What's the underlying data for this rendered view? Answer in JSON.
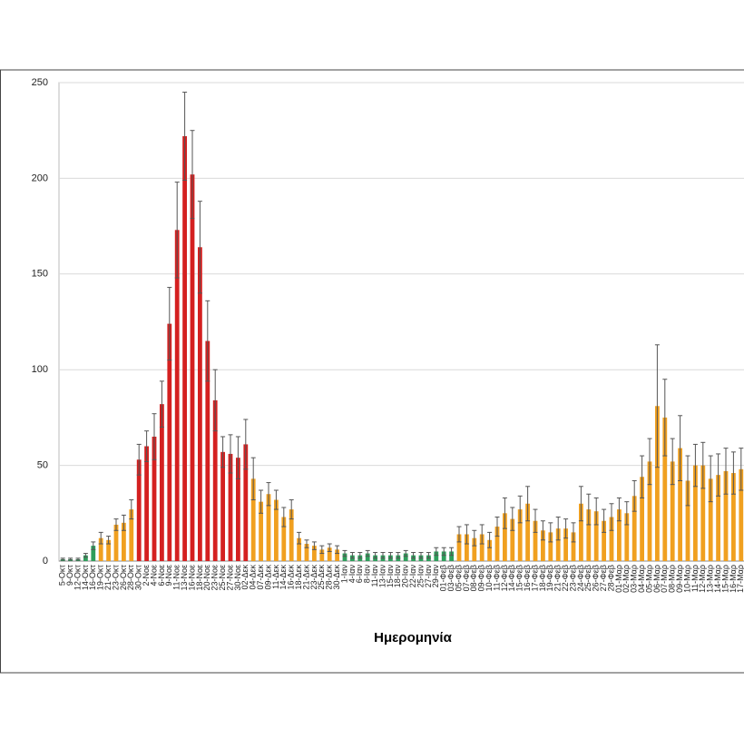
{
  "chart_data": {
    "type": "bar",
    "x_label": "Ημερομηνία",
    "categories": [
      "5-Οκτ",
      "9-Οκτ",
      "12-Οκτ",
      "14-Οκτ",
      "16-Οκτ",
      "19-Οκτ",
      "21-Οκτ",
      "23-Οκτ",
      "26-Οκτ",
      "28-Οκτ",
      "30-Οκτ",
      "2-Νοε",
      "4-Νοε",
      "6-Νοε",
      "9-Νοε",
      "11-Νοε",
      "13-Νοε",
      "16-Νοε",
      "18-Νοε",
      "20-Νοε",
      "23-Νοε",
      "25-Νοε",
      "27-Νοε",
      "30-Νοε",
      "02-Δεκ",
      "04-Δεκ",
      "07-Δεκ",
      "09-Δεκ",
      "11-Δεκ",
      "14-Δεκ",
      "16-Δεκ",
      "18-Δεκ",
      "21-Δεκ",
      "23-Δεκ",
      "25-Δεκ",
      "28-Δεκ",
      "30-Δεκ",
      "1-Ιαν",
      "4-Ιαν",
      "6-Ιαν",
      "8-Ιαν",
      "11-Ιαν",
      "13-Ιαν",
      "15-Ιαν",
      "18-Ιαν",
      "20-Ιαν",
      "22-Ιαν",
      "25-Ιαν",
      "27-Ιαν",
      "29-Ιαν",
      "01-Φεβ",
      "03-Φεβ",
      "05-Φεβ",
      "07-Φεβ",
      "08-Φεβ",
      "09-Φεβ",
      "10-Φεβ",
      "11-Φεβ",
      "12-Φεβ",
      "14-Φεβ",
      "15-Φεβ",
      "16-Φεβ",
      "17-Φεβ",
      "18-Φεβ",
      "19-Φεβ",
      "21-Φεβ",
      "22-Φεβ",
      "23-Φεβ",
      "24-Φεβ",
      "25-Φεβ",
      "26-Φεβ",
      "27-Φεβ",
      "28-Φεβ",
      "01-Μαρ",
      "02-Μαρ",
      "03-Μαρ",
      "04-Μαρ",
      "05-Μαρ",
      "06-Μαρ",
      "07-Μαρ",
      "08-Μαρ",
      "09-Μαρ",
      "10-Μαρ",
      "11-Μαρ",
      "12-Μαρ",
      "13-Μαρ",
      "14-Μαρ",
      "15-Μαρ",
      "16-Μαρ",
      "17-Μαρ"
    ],
    "values": [
      1,
      1,
      1,
      3,
      8,
      12,
      11,
      19,
      20,
      27,
      53,
      60,
      65,
      82,
      124,
      173,
      222,
      202,
      164,
      115,
      84,
      57,
      56,
      54,
      61,
      43,
      31,
      35,
      32,
      23,
      27,
      12,
      9,
      8,
      6,
      7,
      6,
      4,
      3,
      3,
      4,
      3,
      3,
      3,
      3,
      4,
      3,
      3,
      3,
      5,
      5,
      5,
      14,
      14,
      12,
      14,
      11,
      18,
      25,
      22,
      27,
      30,
      21,
      16,
      15,
      17,
      17,
      15,
      30,
      27,
      26,
      21,
      23,
      27,
      25,
      34,
      44,
      52,
      81,
      75,
      52,
      59,
      42,
      50,
      50,
      43,
      45,
      47,
      46,
      48
    ],
    "errors": [
      0.5,
      0.5,
      0.5,
      1,
      2,
      3,
      2,
      3,
      4,
      5,
      8,
      8,
      12,
      12,
      19,
      25,
      23,
      23,
      24,
      21,
      16,
      8,
      10,
      11,
      13,
      11,
      6,
      6,
      5,
      5,
      5,
      3,
      2,
      2,
      2,
      2,
      2,
      1.5,
      1.5,
      1.5,
      1.5,
      1.5,
      1.5,
      1.5,
      1.5,
      1.5,
      1.5,
      1.5,
      1.5,
      2,
      2,
      2,
      4,
      5,
      4,
      5,
      4,
      5,
      8,
      6,
      7,
      9,
      6,
      5,
      5,
      6,
      5,
      5,
      9,
      8,
      7,
      6,
      7,
      6,
      6,
      8,
      11,
      12,
      32,
      20,
      12,
      17,
      13,
      11,
      12,
      12,
      11,
      12,
      11,
      11
    ],
    "bar_colors": [
      "#2e9e5b",
      "#2e9e5b",
      "#2e9e5b",
      "#2e9e5b",
      "#2e9e5b",
      "#f0a020",
      "#f0a020",
      "#f0a020",
      "#f0a020",
      "#f0a020",
      "#d42020",
      "#d42020",
      "#d42020",
      "#d42020",
      "#d42020",
      "#d42020",
      "#d42020",
      "#d42020",
      "#d42020",
      "#d42020",
      "#d42020",
      "#d42020",
      "#d42020",
      "#d42020",
      "#d42020",
      "#f0a020",
      "#f0a020",
      "#f0a020",
      "#f0a020",
      "#f0a020",
      "#f0a020",
      "#f0a020",
      "#f0a020",
      "#f0a020",
      "#f0a020",
      "#f0a020",
      "#f0a020",
      "#2e9e5b",
      "#2e9e5b",
      "#2e9e5b",
      "#2e9e5b",
      "#2e9e5b",
      "#2e9e5b",
      "#2e9e5b",
      "#2e9e5b",
      "#2e9e5b",
      "#2e9e5b",
      "#2e9e5b",
      "#2e9e5b",
      "#2e9e5b",
      "#2e9e5b",
      "#2e9e5b",
      "#f0a020",
      "#f0a020",
      "#f0a020",
      "#f0a020",
      "#f0a020",
      "#f0a020",
      "#f0a020",
      "#f0a020",
      "#f0a020",
      "#f0a020",
      "#f0a020",
      "#f0a020",
      "#f0a020",
      "#f0a020",
      "#f0a020",
      "#f0a020",
      "#f0a020",
      "#f0a020",
      "#f0a020",
      "#f0a020",
      "#f0a020",
      "#f0a020",
      "#f0a020",
      "#f0a020",
      "#f0a020",
      "#f0a020",
      "#f0a020",
      "#f0a020",
      "#f0a020",
      "#f0a020",
      "#f0a020",
      "#f0a020",
      "#f0a020",
      "#f0a020",
      "#f0a020",
      "#f0a020",
      "#f0a020",
      "#f0a020"
    ],
    "error_color": "#555555",
    "ylim": [
      0,
      250
    ],
    "yticks": [
      0,
      50,
      100,
      150,
      200,
      250
    ],
    "grid": true
  }
}
